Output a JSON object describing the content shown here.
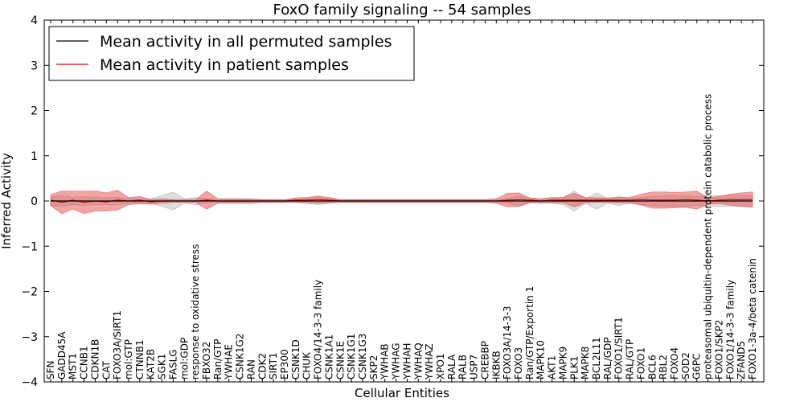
{
  "chart_data": {
    "type": "line",
    "title": "FoxO family signaling -- 54 samples",
    "xlabel": "Cellular Entities",
    "ylabel": "Inferred Activity",
    "ylim": [
      -4,
      4
    ],
    "yticks": [
      "4",
      "3",
      "2",
      "1",
      "0",
      "−1",
      "−2",
      "−3",
      "−4"
    ],
    "ytick_values": [
      4,
      3,
      2,
      1,
      0,
      -1,
      -2,
      -3,
      -4
    ],
    "grid": false,
    "legend_position": "top-left",
    "colors": {
      "permuted": "#000000",
      "patient": "#e00000",
      "patient_band": "#e34a4a",
      "permuted_band": "#bdbdbd"
    },
    "categories": [
      "SFN",
      "GADD45A",
      "MST1",
      "CCNB1",
      "CDKN1B",
      "CAT",
      "FOXO3A/SIRT1",
      "mol:GTP",
      "CTNNB1",
      "KAT2B",
      "SGK1",
      "FASLG",
      "mol:GDP",
      "response to oxidative stress",
      "FBXO32",
      "Ran/GTP",
      "YWHAE",
      "CSNK1G2",
      "RAN",
      "CDK2",
      "SIRT1",
      "EP300",
      "CSNK1D",
      "CHUK",
      "FOXO4/14-3-3 family",
      "CSNK1A1",
      "CSNK1E",
      "CSNK1G1",
      "CSNK1G3",
      "SKP2",
      "YWHAB",
      "YWHAG",
      "YWHAH",
      "YWHAQ",
      "YWHAZ",
      "XPO1",
      "RALA",
      "RALB",
      "USP7",
      "CREBBP",
      "IKBKB",
      "FOXO3A/14-3-3",
      "FOXO3",
      "Ran/GTP/Exportin 1",
      "MAPK10",
      "AKT1",
      "MAPK9",
      "PLK1",
      "MAPK8",
      "BCL2L11",
      "RAL/GDP",
      "FOXO1/SIRT1",
      "RAL/GTP",
      "FOXO1",
      "BCL6",
      "RBL2",
      "FOXO4",
      "SOD2",
      "G6PC",
      "proteasomal ubiquitin-dependent protein catabolic process",
      "FOXO1/SKP2",
      "FOXO1/14-3-3 family",
      "ZFAND5",
      "FOXO1-3a-4/beta catenin"
    ],
    "series": [
      {
        "name": "Mean activity in all permuted samples",
        "values": [
          0,
          0,
          0,
          0,
          0,
          0,
          0,
          0,
          0,
          0,
          0,
          0,
          0,
          0,
          0,
          0,
          0,
          0,
          0,
          0,
          0,
          0,
          0,
          0,
          0,
          0,
          0,
          0,
          0,
          0,
          0,
          0,
          0,
          0,
          0,
          0,
          0,
          0,
          0,
          0,
          0,
          0,
          0,
          0,
          0,
          0,
          0,
          0,
          0,
          0,
          0,
          0,
          0,
          0,
          0,
          0,
          0,
          0,
          0,
          0,
          0,
          0,
          0,
          0
        ],
        "band": [
          0.1,
          0.12,
          0.08,
          0.1,
          0.08,
          0.08,
          0.08,
          0.05,
          0.05,
          0.05,
          0.12,
          0.2,
          0.05,
          0.08,
          0.05,
          0.03,
          0.03,
          0.03,
          0.03,
          0.03,
          0.03,
          0.03,
          0.03,
          0.05,
          0.08,
          0.05,
          0.03,
          0.03,
          0.03,
          0.03,
          0.03,
          0.03,
          0.03,
          0.03,
          0.03,
          0.03,
          0.03,
          0.03,
          0.03,
          0.03,
          0.03,
          0.05,
          0.12,
          0.05,
          0.03,
          0.05,
          0.08,
          0.22,
          0.05,
          0.18,
          0.05,
          0.1,
          0.05,
          0.08,
          0.1,
          0.12,
          0.12,
          0.12,
          0.1,
          0.12,
          0.12,
          0.12,
          0.12,
          0.12
        ]
      },
      {
        "name": "Mean activity in patient samples",
        "values": [
          0.02,
          -0.03,
          0.02,
          -0.03,
          0,
          -0.02,
          0.02,
          0,
          0.02,
          -0.02,
          0,
          0,
          0,
          0,
          0.02,
          0,
          0,
          0,
          0,
          0,
          0,
          0,
          0.02,
          0.02,
          0.03,
          0.02,
          0,
          0,
          0,
          0,
          0,
          0,
          0,
          0,
          0,
          0,
          0,
          0,
          0,
          0,
          0,
          0.02,
          0.03,
          0.02,
          0,
          0.02,
          0.02,
          0.02,
          0.02,
          0.02,
          0.02,
          0.02,
          0.02,
          0.03,
          0.02,
          0.02,
          0.02,
          0.03,
          0.02,
          0,
          0.02,
          0.03,
          0.03,
          0.03
        ],
        "band": [
          0.12,
          0.25,
          0.2,
          0.25,
          0.22,
          0.2,
          0.22,
          0.08,
          0.08,
          0.05,
          0.05,
          0.03,
          0.03,
          0.03,
          0.2,
          0.05,
          0.05,
          0.05,
          0.05,
          0.03,
          0.03,
          0.03,
          0.05,
          0.06,
          0.08,
          0.06,
          0.03,
          0.03,
          0.03,
          0.03,
          0.03,
          0.03,
          0.03,
          0.03,
          0.03,
          0.03,
          0.03,
          0.03,
          0.03,
          0.03,
          0.05,
          0.15,
          0.15,
          0.05,
          0.05,
          0.06,
          0.06,
          0.15,
          0.06,
          0.05,
          0.05,
          0.06,
          0.06,
          0.12,
          0.18,
          0.18,
          0.17,
          0.17,
          0.2,
          0.07,
          0.08,
          0.12,
          0.15,
          0.17
        ]
      }
    ]
  }
}
